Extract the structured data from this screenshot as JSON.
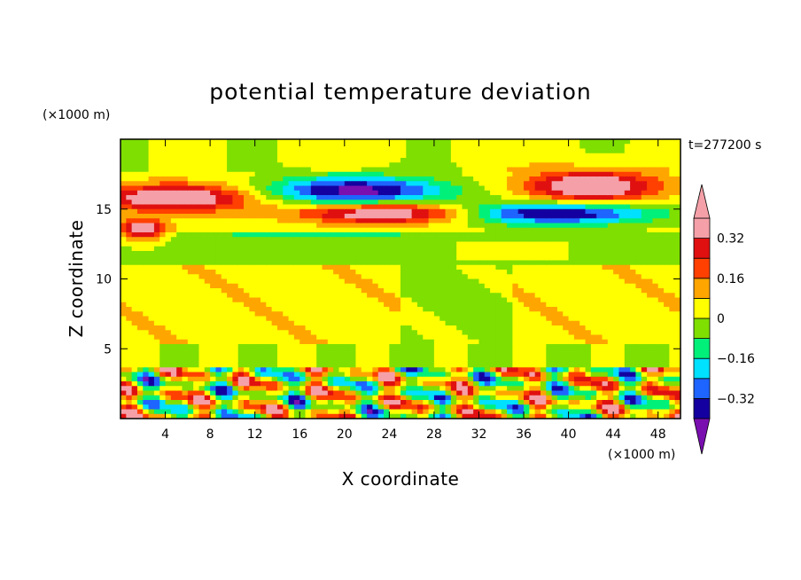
{
  "chart_data": {
    "type": "heatmap",
    "title": "potential temperature deviation",
    "xlabel": "X coordinate",
    "ylabel": "Z coordinate",
    "x_unit": "(×1000 m)",
    "y_unit": "(×1000 m)",
    "time_label": "t=277200 s",
    "xlim": [
      0,
      50
    ],
    "ylim": [
      0,
      20
    ],
    "x_ticks": [
      4,
      8,
      12,
      16,
      20,
      24,
      28,
      32,
      36,
      40,
      44,
      48
    ],
    "y_ticks": [
      5,
      10,
      15
    ],
    "colorbar": {
      "levels": [
        -0.4,
        -0.32,
        -0.24,
        -0.16,
        -0.08,
        0,
        0.08,
        0.16,
        0.24,
        0.32,
        0.4
      ],
      "colors": [
        "#7a0fb0",
        "#1400a0",
        "#1e64ff",
        "#00e0ff",
        "#00f07a",
        "#7fdf00",
        "#ffff00",
        "#ffa500",
        "#ff4000",
        "#e01010",
        "#f5a0a8",
        "#f5a0a8"
      ],
      "labels": [
        {
          "value": 0.32,
          "text": "0.32"
        },
        {
          "value": 0.16,
          "text": "0.16"
        },
        {
          "value": 0,
          "text": "0"
        },
        {
          "value": -0.16,
          "text": "−0.16"
        },
        {
          "value": -0.32,
          "text": "−0.32"
        }
      ]
    },
    "features": [
      {
        "kind": "cold",
        "x": 21,
        "y": 16.3,
        "rx": 8,
        "ry": 1.0
      },
      {
        "kind": "cold",
        "x": 38.5,
        "y": 14.7,
        "rx": 9,
        "ry": 0.8
      },
      {
        "kind": "warm",
        "x": 24,
        "y": 14.7,
        "rx": 8,
        "ry": 0.75
      },
      {
        "kind": "warm",
        "x": 42,
        "y": 16.6,
        "rx": 6,
        "ry": 1.2
      },
      {
        "kind": "warm",
        "x": 5,
        "y": 15.8,
        "rx": 7,
        "ry": 1.0
      },
      {
        "kind": "warm",
        "x": 2,
        "y": 13.5,
        "rx": 2,
        "ry": 0.7
      }
    ]
  }
}
